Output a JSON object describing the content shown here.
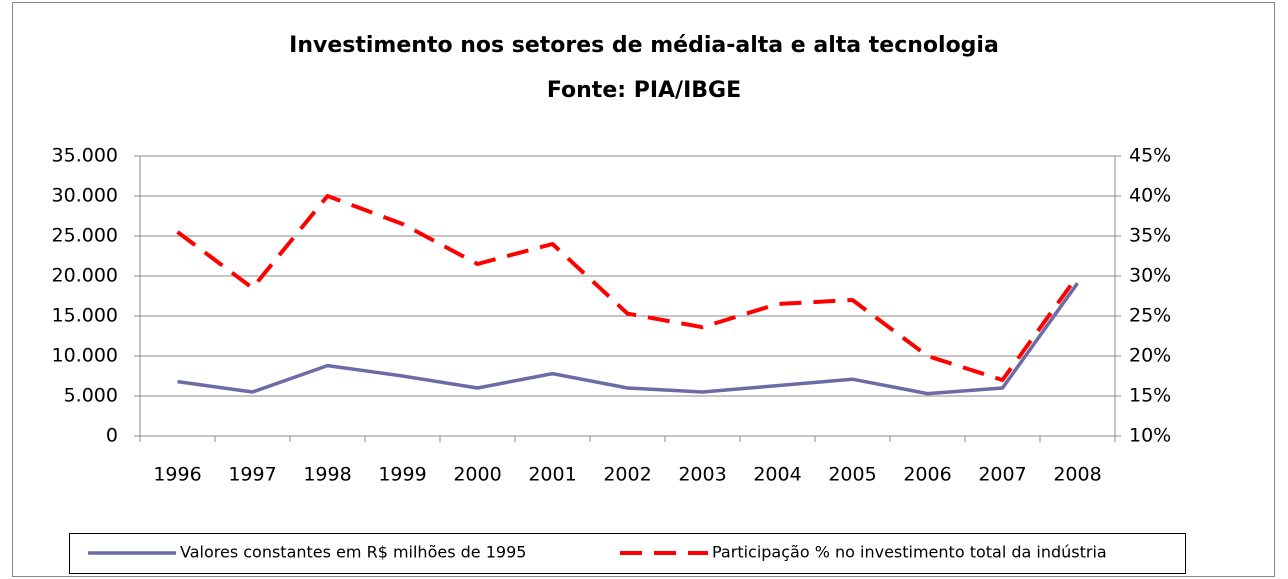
{
  "chart_data": {
    "type": "line",
    "title": "Investimento nos setores de média-alta e alta tecnologia",
    "subtitle": "Fonte: PIA/IBGE",
    "categories": [
      "1996",
      "1997",
      "1998",
      "1999",
      "2000",
      "2001",
      "2002",
      "2003",
      "2004",
      "2005",
      "2006",
      "2007",
      "2008"
    ],
    "series": [
      {
        "name": "Valores constantes em R$ milhões de 1995",
        "color": "#6b6ba6",
        "style": "solid",
        "values": [
          6800,
          5500,
          8800,
          7500,
          6000,
          7800,
          6000,
          5500,
          6300,
          7100,
          5300,
          6000,
          19100
        ]
      },
      {
        "name": "Participação % no investimento total da indústria",
        "color": "#ff0000",
        "style": "dashed",
        "axis": "y2",
        "values": [
          35.5,
          28.5,
          40,
          36.5,
          31.5,
          34,
          25.3,
          23.6,
          26.5,
          27,
          20,
          17,
          30
        ]
      }
    ],
    "ylim": [
      0,
      35000
    ],
    "yticks": [
      0,
      {
        "value": 5000,
        "label": "5.000"
      },
      {
        "value": 10000,
        "label": "10.000"
      },
      {
        "value": 15000,
        "label": "15.000"
      },
      {
        "value": 20000,
        "label": "20.000"
      },
      {
        "value": 25000,
        "label": "25.000"
      },
      {
        "value": 30000,
        "label": "30.000"
      },
      {
        "value": 35000,
        "label": "35.000"
      }
    ],
    "y2lim": [
      10,
      45
    ],
    "y2ticks": [
      {
        "value": 10,
        "label": "10%"
      },
      {
        "value": 15,
        "label": "15%"
      },
      {
        "value": 20,
        "label": "20%"
      },
      {
        "value": 25,
        "label": "25%"
      },
      {
        "value": 30,
        "label": "30%"
      },
      {
        "value": 35,
        "label": "35%"
      },
      {
        "value": 40,
        "label": "40%"
      },
      {
        "value": 45,
        "label": "45%"
      }
    ],
    "grid": true,
    "legend": "bottom"
  }
}
